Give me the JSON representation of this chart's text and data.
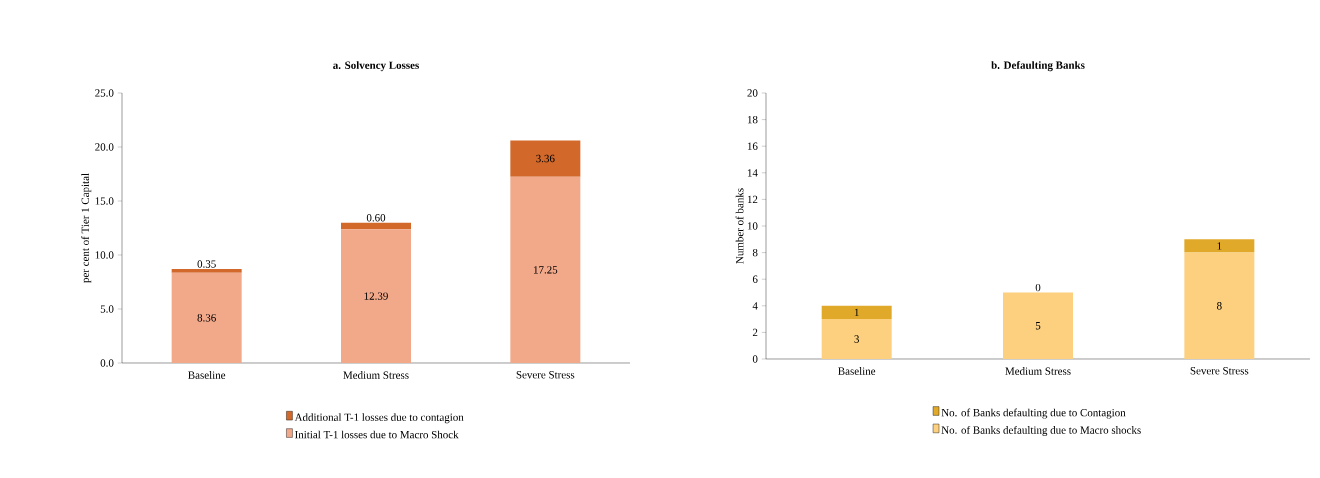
{
  "chart_data": [
    {
      "type": "bar",
      "title": "**a. Solvency Losses**",
      "ylabel": "per cent of Tier 1 Capital",
      "categories": [
        "Baseline",
        "Medium Stress",
        "Severe Stress"
      ],
      "stacked": true,
      "legend": "bottom",
      "ylim": [
        0,
        25
      ],
      "yticks": [
        {
          "value": 0,
          "label": "0.0"
        },
        {
          "value": 5,
          "label": "5.0"
        },
        {
          "value": 10,
          "label": "10.0"
        },
        {
          "value": 15,
          "label": "15.0"
        },
        {
          "value": 20,
          "label": "20.0"
        },
        {
          "value": 25,
          "label": "25.0"
        }
      ],
      "series": [
        {
          "name": "Initial T-1 losses due to Macro Shock",
          "color": "#f2a98a",
          "values": [
            8.36,
            12.39,
            17.25
          ],
          "value_labels": [
            "8.36",
            "12.39",
            "17.25"
          ]
        },
        {
          "name": "Additional T-1 losses due to contagion",
          "color": "#d2692a",
          "values": [
            0.35,
            0.6,
            3.36
          ],
          "value_labels": [
            "0.35",
            "0.60",
            "3.36"
          ]
        }
      ]
    },
    {
      "type": "bar",
      "title": "**b. Defaulting Banks**",
      "ylabel": "Number of banks",
      "categories": [
        "Baseline",
        "Medium Stress",
        "Severe Stress"
      ],
      "stacked": true,
      "legend": "bottom",
      "ylim": [
        0,
        20
      ],
      "yticks": [
        0,
        2,
        4,
        6,
        8,
        10,
        12,
        14,
        16,
        18,
        20
      ],
      "series": [
        {
          "name": "No. of Banks defaulting due to Macro shocks",
          "color": "#fdd07f",
          "values": [
            3,
            5,
            8
          ],
          "value_labels": [
            "3",
            "5",
            "8"
          ]
        },
        {
          "name": "No. of Banks defaulting due to Contagion",
          "color": "#e0a92a",
          "values": [
            1,
            0,
            1
          ],
          "value_labels": [
            "1",
            "0",
            "1"
          ]
        }
      ]
    }
  ]
}
